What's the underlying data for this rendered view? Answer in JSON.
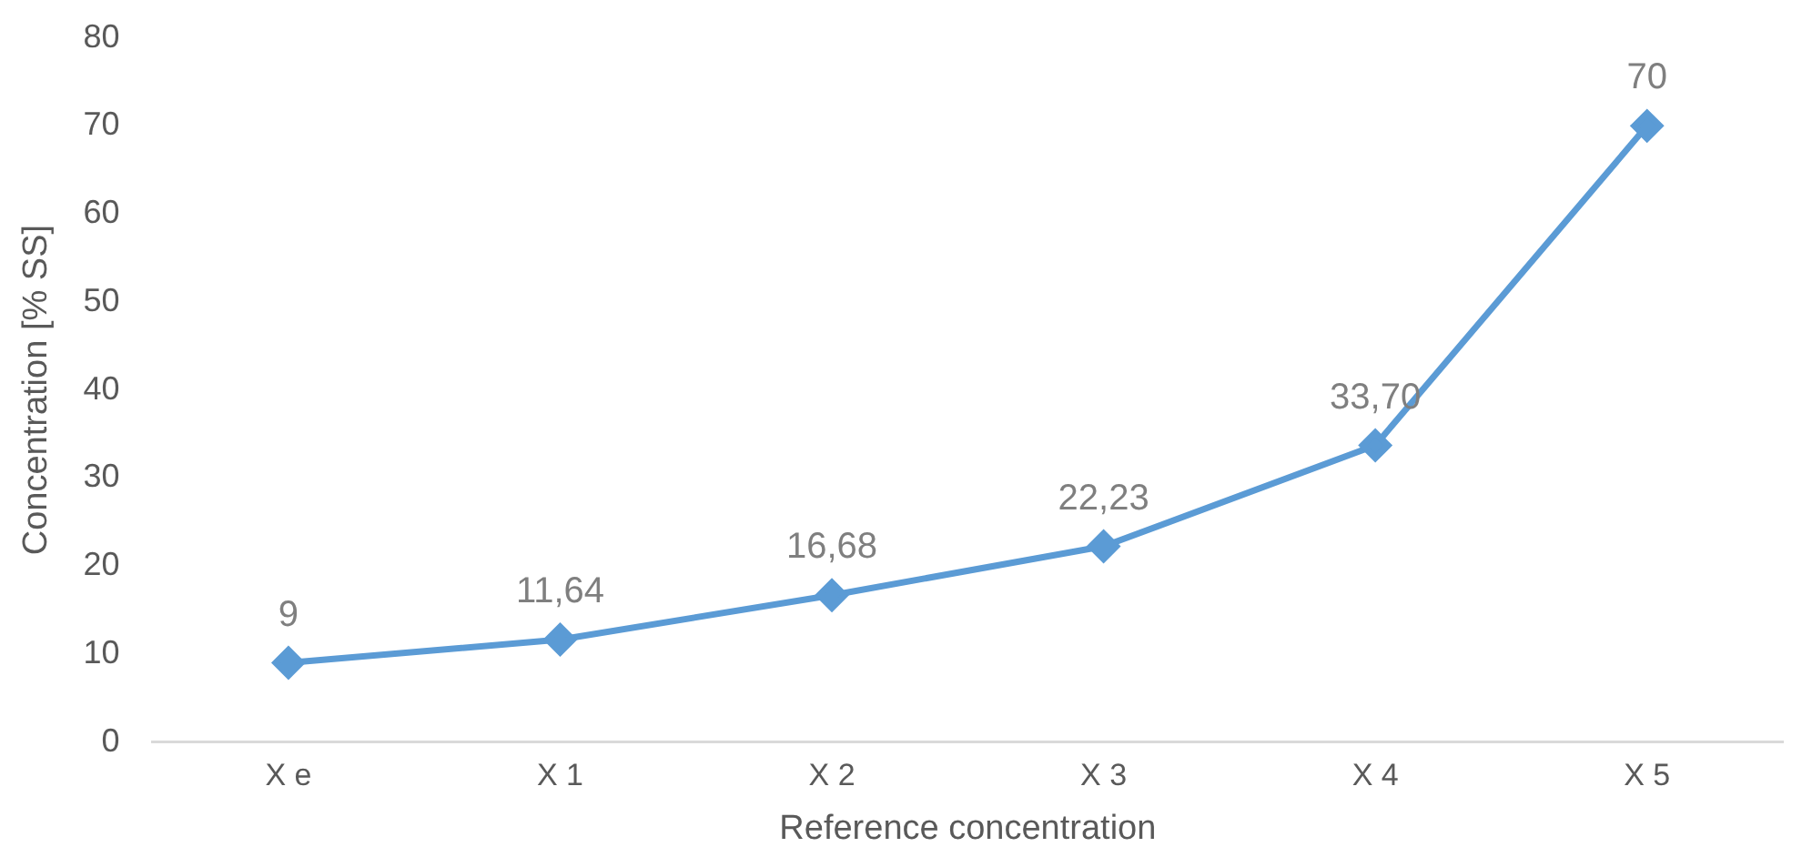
{
  "chart_data": {
    "type": "line",
    "xlabel": "Reference concentration",
    "ylabel": "Concentration [% SS]",
    "categories": [
      "X e",
      "X 1",
      "X 2",
      "X 3",
      "X 4",
      "X 5"
    ],
    "series": [
      {
        "color": "#5b9bd5",
        "values": [
          9,
          11.64,
          16.68,
          22.23,
          33.7,
          70
        ],
        "value_labels": [
          "9",
          "11,64",
          "16,68",
          "22,23",
          "33,70",
          "70"
        ]
      }
    ],
    "ylim": [
      0,
      80
    ],
    "yticks": [
      0,
      10,
      20,
      30,
      40,
      50,
      60,
      70,
      80
    ],
    "grid": false,
    "legend": false,
    "marker": "diamond",
    "line_style": "solid"
  }
}
